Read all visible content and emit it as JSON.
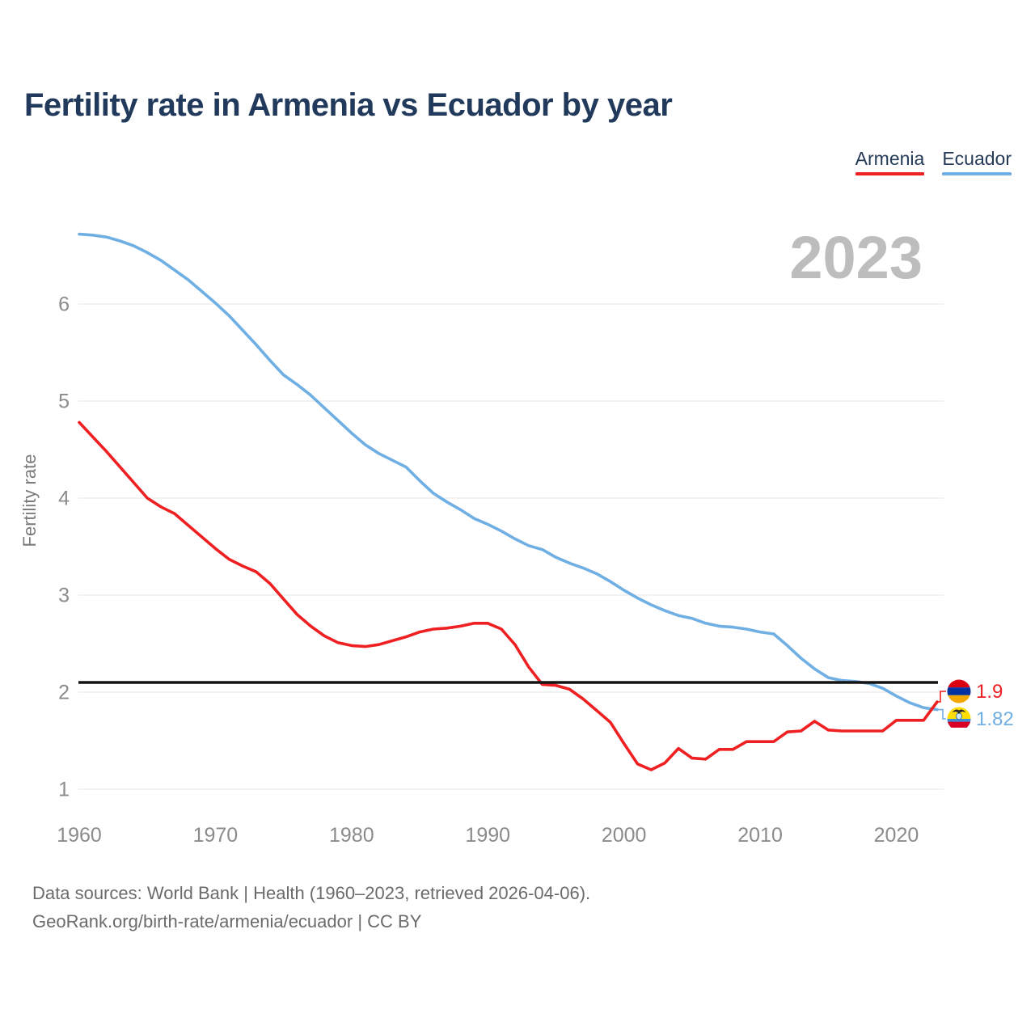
{
  "title": "Fertility rate in Armenia vs Ecuador by year",
  "legend": [
    {
      "label": "Armenia",
      "color": "#ee2022"
    },
    {
      "label": "Ecuador",
      "color": "#6fafe4"
    }
  ],
  "watermark_year": "2023",
  "y_axis_title": "Fertility rate",
  "end_labels": [
    {
      "series": "Armenia",
      "value": "1.9",
      "color": "#ee2022",
      "flag": "armenia"
    },
    {
      "series": "Ecuador",
      "value": "1.82",
      "color": "#6fafe4",
      "flag": "ecuador"
    }
  ],
  "flag_palettes": {
    "armenia": {
      "red": "#D90012",
      "blue": "#0033A0",
      "orange": "#F2A800"
    },
    "ecuador": {
      "yellow": "#FFDD00",
      "blue": "#3D8AD6",
      "red": "#D80027",
      "crest": "#2b2b2b",
      "globe": "#cfe6f7",
      "globe_ring": "#2b66a8"
    }
  },
  "footer": {
    "line1": "Data sources: World Bank | Health (1960–2023, retrieved 2026-04-06).",
    "line2": "GeoRank.org/birth-rate/armenia/ecuador | CC BY"
  },
  "chart_data": {
    "type": "line",
    "title": "Fertility rate in Armenia vs Ecuador by year",
    "xlabel": "",
    "ylabel": "Fertility rate",
    "grid": true,
    "legend_position": "top-right",
    "reference_line_y": 2.1,
    "reference_line_color": "#141414",
    "grid_color": "#e9e9e9",
    "tick_color": "#8b8b8b",
    "watermark_color": "#bdbdbd",
    "axis_title_color": "#7b7b7b",
    "xticks": [
      1960,
      1970,
      1980,
      1990,
      2000,
      2010,
      2020
    ],
    "yticks": [
      1,
      2,
      3,
      4,
      5,
      6
    ],
    "xlim": [
      1960,
      2023
    ],
    "ylim_drawn": [
      0.7,
      6.9
    ],
    "years": [
      1960,
      1961,
      1962,
      1963,
      1964,
      1965,
      1966,
      1967,
      1968,
      1969,
      1970,
      1971,
      1972,
      1973,
      1974,
      1975,
      1976,
      1977,
      1978,
      1979,
      1980,
      1981,
      1982,
      1983,
      1984,
      1985,
      1986,
      1987,
      1988,
      1989,
      1990,
      1991,
      1992,
      1993,
      1994,
      1995,
      1996,
      1997,
      1998,
      1999,
      2000,
      2001,
      2002,
      2003,
      2004,
      2005,
      2006,
      2007,
      2008,
      2009,
      2010,
      2011,
      2012,
      2013,
      2014,
      2015,
      2016,
      2017,
      2018,
      2019,
      2020,
      2021,
      2022,
      2023
    ],
    "series": [
      {
        "name": "Armenia",
        "color": "#ee2022",
        "end_value": 1.9,
        "values": [
          4.78,
          4.63,
          4.48,
          4.32,
          4.16,
          4.0,
          3.91,
          3.84,
          3.72,
          3.6,
          3.48,
          3.37,
          3.3,
          3.24,
          3.12,
          2.96,
          2.8,
          2.68,
          2.58,
          2.51,
          2.48,
          2.47,
          2.49,
          2.53,
          2.57,
          2.62,
          2.65,
          2.66,
          2.68,
          2.71,
          2.71,
          2.65,
          2.49,
          2.26,
          2.08,
          2.07,
          2.03,
          1.93,
          1.81,
          1.69,
          1.47,
          1.26,
          1.2,
          1.27,
          1.42,
          1.32,
          1.31,
          1.41,
          1.41,
          1.49,
          1.49,
          1.49,
          1.59,
          1.6,
          1.7,
          1.61,
          1.6,
          1.6,
          1.6,
          1.6,
          1.71,
          1.71,
          1.71,
          1.9
        ]
      },
      {
        "name": "Ecuador",
        "color": "#6fafe4",
        "end_value": 1.82,
        "values": [
          6.72,
          6.71,
          6.69,
          6.65,
          6.6,
          6.53,
          6.45,
          6.35,
          6.25,
          6.13,
          6.01,
          5.88,
          5.73,
          5.58,
          5.42,
          5.27,
          5.17,
          5.06,
          4.93,
          4.8,
          4.67,
          4.55,
          4.46,
          4.39,
          4.32,
          4.18,
          4.05,
          3.96,
          3.88,
          3.79,
          3.73,
          3.66,
          3.58,
          3.51,
          3.47,
          3.39,
          3.33,
          3.28,
          3.22,
          3.14,
          3.05,
          2.97,
          2.9,
          2.84,
          2.79,
          2.76,
          2.71,
          2.68,
          2.67,
          2.65,
          2.62,
          2.6,
          2.48,
          2.35,
          2.24,
          2.15,
          2.12,
          2.11,
          2.09,
          2.04,
          1.96,
          1.89,
          1.84,
          1.82
        ]
      }
    ]
  }
}
